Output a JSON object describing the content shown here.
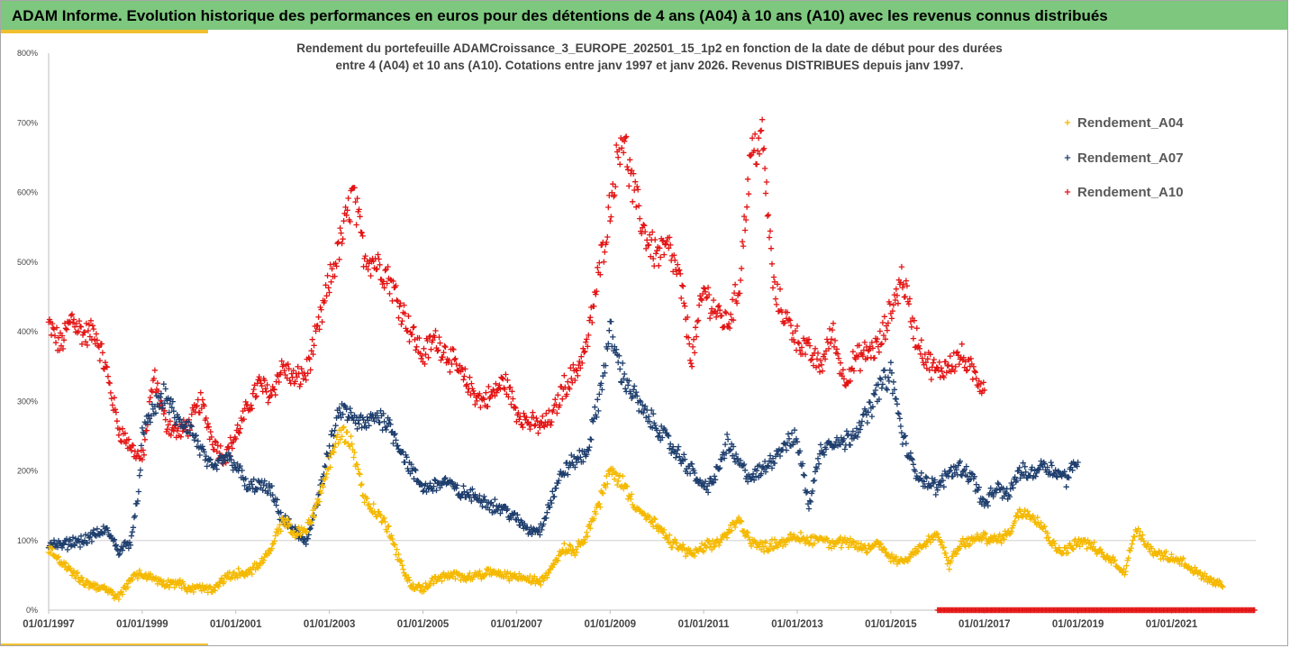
{
  "header": {
    "title": "ADAM Informe. Evolution historique des performances en euros pour des détentions de 4 ans (A04) à 10 ans (A10) avec les revenus connus distribués"
  },
  "chart_data": {
    "type": "scatter",
    "subtitle_lines": [
      "Rendement du portefeuille ADAMCroissance_3_EUROPE_202501_15_1p2  en fonction de la date de début pour des durées",
      "entre 4 (A04) et 10 ans (A10). Cotations entre janv 1997 et janv 2026. Revenus DISTRIBUES depuis janv 1997."
    ],
    "y_tick_labels": [
      "0%",
      "100%",
      "200%",
      "300%",
      "400%",
      "500%",
      "600%",
      "700%",
      "800%"
    ],
    "x_tick_labels": [
      "01/01/1997",
      "01/01/1999",
      "01/01/2001",
      "01/01/2003",
      "01/01/2005",
      "01/01/2007",
      "01/01/2009",
      "01/01/2011",
      "01/01/2013",
      "01/01/2015",
      "01/01/2017",
      "01/01/2019",
      "01/01/2021"
    ],
    "x_tick_years": [
      1997,
      1999,
      2001,
      2003,
      2005,
      2007,
      2009,
      2011,
      2013,
      2015,
      2017,
      2019,
      2021
    ],
    "xlim": [
      1997.0,
      2022.8
    ],
    "ylim": [
      0,
      800
    ],
    "marker": "plus",
    "grid": "horizontal at 100%",
    "legend_position": "right",
    "series": [
      {
        "name": "Rendement_A04",
        "color": "#f5b900",
        "points": [
          [
            1997.0,
            90
          ],
          [
            1997.25,
            70
          ],
          [
            1997.5,
            55
          ],
          [
            1997.75,
            40
          ],
          [
            1998.0,
            35
          ],
          [
            1998.25,
            28
          ],
          [
            1998.5,
            18
          ],
          [
            1998.75,
            45
          ],
          [
            1999.0,
            52
          ],
          [
            1999.25,
            45
          ],
          [
            1999.5,
            38
          ],
          [
            1999.75,
            40
          ],
          [
            2000.0,
            30
          ],
          [
            2000.25,
            32
          ],
          [
            2000.5,
            28
          ],
          [
            2000.75,
            45
          ],
          [
            2001.0,
            52
          ],
          [
            2001.25,
            55
          ],
          [
            2001.5,
            65
          ],
          [
            2001.75,
            85
          ],
          [
            2002.0,
            130
          ],
          [
            2002.25,
            110
          ],
          [
            2002.5,
            115
          ],
          [
            2002.75,
            155
          ],
          [
            2003.0,
            210
          ],
          [
            2003.25,
            260
          ],
          [
            2003.5,
            235
          ],
          [
            2003.75,
            160
          ],
          [
            2004.0,
            140
          ],
          [
            2004.25,
            120
          ],
          [
            2004.5,
            70
          ],
          [
            2004.75,
            35
          ],
          [
            2005.0,
            30
          ],
          [
            2005.25,
            45
          ],
          [
            2005.5,
            48
          ],
          [
            2005.75,
            50
          ],
          [
            2006.0,
            48
          ],
          [
            2006.25,
            52
          ],
          [
            2006.5,
            55
          ],
          [
            2006.75,
            50
          ],
          [
            2007.0,
            48
          ],
          [
            2007.25,
            45
          ],
          [
            2007.5,
            40
          ],
          [
            2007.75,
            60
          ],
          [
            2008.0,
            90
          ],
          [
            2008.25,
            85
          ],
          [
            2008.5,
            110
          ],
          [
            2008.75,
            150
          ],
          [
            2009.0,
            200
          ],
          [
            2009.25,
            185
          ],
          [
            2009.5,
            155
          ],
          [
            2009.75,
            135
          ],
          [
            2010.0,
            120
          ],
          [
            2010.25,
            100
          ],
          [
            2010.5,
            90
          ],
          [
            2010.75,
            80
          ],
          [
            2011.0,
            90
          ],
          [
            2011.25,
            95
          ],
          [
            2011.5,
            110
          ],
          [
            2011.75,
            130
          ],
          [
            2012.0,
            100
          ],
          [
            2012.25,
            90
          ],
          [
            2012.5,
            95
          ],
          [
            2012.75,
            100
          ],
          [
            2013.0,
            105
          ],
          [
            2013.25,
            100
          ],
          [
            2013.5,
            105
          ],
          [
            2013.75,
            95
          ],
          [
            2014.0,
            98
          ],
          [
            2014.25,
            92
          ],
          [
            2014.5,
            88
          ],
          [
            2014.75,
            95
          ],
          [
            2015.0,
            75
          ],
          [
            2015.25,
            70
          ],
          [
            2015.5,
            85
          ],
          [
            2015.75,
            95
          ],
          [
            2016.0,
            110
          ],
          [
            2016.25,
            65
          ],
          [
            2016.5,
            95
          ],
          [
            2016.75,
            100
          ],
          [
            2017.0,
            105
          ],
          [
            2017.25,
            100
          ],
          [
            2017.5,
            110
          ],
          [
            2017.75,
            140
          ],
          [
            2018.0,
            140
          ],
          [
            2018.25,
            120
          ],
          [
            2018.5,
            90
          ],
          [
            2018.75,
            85
          ],
          [
            2019.0,
            100
          ],
          [
            2019.25,
            95
          ],
          [
            2019.5,
            80
          ],
          [
            2019.75,
            70
          ],
          [
            2020.0,
            55
          ],
          [
            2020.25,
            120
          ],
          [
            2020.5,
            90
          ],
          [
            2020.75,
            80
          ],
          [
            2021.0,
            75
          ],
          [
            2021.25,
            70
          ],
          [
            2021.5,
            55
          ],
          [
            2021.75,
            45
          ],
          [
            2022.0,
            38
          ],
          [
            2022.1,
            35
          ]
        ]
      },
      {
        "name": "Rendement_A07",
        "color": "#1f3f6e",
        "points": [
          [
            1997.0,
            95
          ],
          [
            1997.25,
            92
          ],
          [
            1997.5,
            98
          ],
          [
            1997.75,
            100
          ],
          [
            1998.0,
            108
          ],
          [
            1998.25,
            115
          ],
          [
            1998.5,
            85
          ],
          [
            1998.75,
            100
          ],
          [
            1998.9,
            155
          ],
          [
            1999.0,
            250
          ],
          [
            1999.25,
            290
          ],
          [
            1999.5,
            310
          ],
          [
            1999.75,
            270
          ],
          [
            2000.0,
            265
          ],
          [
            2000.25,
            230
          ],
          [
            2000.5,
            200
          ],
          [
            2000.75,
            220
          ],
          [
            2001.0,
            210
          ],
          [
            2001.25,
            175
          ],
          [
            2001.5,
            180
          ],
          [
            2001.75,
            170
          ],
          [
            2002.0,
            130
          ],
          [
            2002.25,
            115
          ],
          [
            2002.5,
            95
          ],
          [
            2002.75,
            160
          ],
          [
            2003.0,
            230
          ],
          [
            2003.25,
            290
          ],
          [
            2003.5,
            275
          ],
          [
            2003.75,
            265
          ],
          [
            2004.0,
            280
          ],
          [
            2004.25,
            270
          ],
          [
            2004.5,
            235
          ],
          [
            2004.75,
            200
          ],
          [
            2005.0,
            175
          ],
          [
            2005.25,
            180
          ],
          [
            2005.5,
            185
          ],
          [
            2005.75,
            170
          ],
          [
            2006.0,
            165
          ],
          [
            2006.25,
            160
          ],
          [
            2006.5,
            150
          ],
          [
            2006.75,
            145
          ],
          [
            2007.0,
            130
          ],
          [
            2007.25,
            115
          ],
          [
            2007.5,
            115
          ],
          [
            2007.75,
            160
          ],
          [
            2008.0,
            200
          ],
          [
            2008.25,
            215
          ],
          [
            2008.5,
            225
          ],
          [
            2008.75,
            300
          ],
          [
            2009.0,
            400
          ],
          [
            2009.25,
            340
          ],
          [
            2009.5,
            310
          ],
          [
            2009.75,
            280
          ],
          [
            2010.0,
            265
          ],
          [
            2010.25,
            240
          ],
          [
            2010.5,
            220
          ],
          [
            2010.75,
            200
          ],
          [
            2011.0,
            175
          ],
          [
            2011.25,
            190
          ],
          [
            2011.5,
            240
          ],
          [
            2011.75,
            210
          ],
          [
            2012.0,
            190
          ],
          [
            2012.25,
            200
          ],
          [
            2012.5,
            220
          ],
          [
            2012.75,
            240
          ],
          [
            2013.0,
            245
          ],
          [
            2013.25,
            150
          ],
          [
            2013.5,
            230
          ],
          [
            2013.75,
            245
          ],
          [
            2014.0,
            240
          ],
          [
            2014.25,
            260
          ],
          [
            2014.5,
            280
          ],
          [
            2014.75,
            320
          ],
          [
            2015.0,
            340
          ],
          [
            2015.25,
            250
          ],
          [
            2015.5,
            200
          ],
          [
            2015.75,
            185
          ],
          [
            2016.0,
            175
          ],
          [
            2016.25,
            200
          ],
          [
            2016.5,
            205
          ],
          [
            2016.75,
            190
          ],
          [
            2017.0,
            150
          ],
          [
            2017.25,
            175
          ],
          [
            2017.5,
            165
          ],
          [
            2017.75,
            200
          ],
          [
            2018.0,
            195
          ],
          [
            2018.25,
            210
          ],
          [
            2018.5,
            200
          ],
          [
            2018.75,
            190
          ],
          [
            2019.0,
            215
          ]
        ]
      },
      {
        "name": "Rendement_A10",
        "color": "#e31414",
        "points": [
          [
            1997.0,
            410
          ],
          [
            1997.25,
            380
          ],
          [
            1997.5,
            420
          ],
          [
            1997.75,
            395
          ],
          [
            1998.0,
            400
          ],
          [
            1998.25,
            340
          ],
          [
            1998.5,
            260
          ],
          [
            1998.75,
            235
          ],
          [
            1999.0,
            215
          ],
          [
            1999.25,
            335
          ],
          [
            1999.5,
            270
          ],
          [
            1999.75,
            255
          ],
          [
            2000.0,
            265
          ],
          [
            2000.25,
            300
          ],
          [
            2000.5,
            245
          ],
          [
            2000.75,
            220
          ],
          [
            2001.0,
            250
          ],
          [
            2001.25,
            290
          ],
          [
            2001.5,
            325
          ],
          [
            2001.75,
            310
          ],
          [
            2002.0,
            350
          ],
          [
            2002.25,
            330
          ],
          [
            2002.5,
            340
          ],
          [
            2002.75,
            400
          ],
          [
            2003.0,
            470
          ],
          [
            2003.25,
            530
          ],
          [
            2003.5,
            600
          ],
          [
            2003.75,
            510
          ],
          [
            2004.0,
            500
          ],
          [
            2004.25,
            480
          ],
          [
            2004.5,
            440
          ],
          [
            2004.75,
            400
          ],
          [
            2005.0,
            365
          ],
          [
            2005.25,
            390
          ],
          [
            2005.5,
            370
          ],
          [
            2005.75,
            345
          ],
          [
            2006.0,
            320
          ],
          [
            2006.25,
            300
          ],
          [
            2006.5,
            310
          ],
          [
            2006.75,
            330
          ],
          [
            2007.0,
            285
          ],
          [
            2007.25,
            270
          ],
          [
            2007.5,
            265
          ],
          [
            2007.75,
            275
          ],
          [
            2008.0,
            320
          ],
          [
            2008.25,
            340
          ],
          [
            2008.5,
            380
          ],
          [
            2008.75,
            480
          ],
          [
            2009.0,
            580
          ],
          [
            2009.25,
            690
          ],
          [
            2009.5,
            600
          ],
          [
            2009.75,
            540
          ],
          [
            2010.0,
            510
          ],
          [
            2010.25,
            520
          ],
          [
            2010.5,
            470
          ],
          [
            2010.75,
            360
          ],
          [
            2011.0,
            460
          ],
          [
            2011.25,
            430
          ],
          [
            2011.5,
            410
          ],
          [
            2011.75,
            460
          ],
          [
            2012.0,
            650
          ],
          [
            2012.25,
            680
          ],
          [
            2012.5,
            460
          ],
          [
            2012.75,
            420
          ],
          [
            2013.0,
            390
          ],
          [
            2013.25,
            370
          ],
          [
            2013.5,
            350
          ],
          [
            2013.75,
            400
          ],
          [
            2014.0,
            330
          ],
          [
            2014.25,
            360
          ],
          [
            2014.5,
            370
          ],
          [
            2014.75,
            380
          ],
          [
            2015.0,
            430
          ],
          [
            2015.25,
            480
          ],
          [
            2015.5,
            400
          ],
          [
            2015.75,
            360
          ],
          [
            2016.0,
            340
          ],
          [
            2016.25,
            355
          ],
          [
            2016.5,
            365
          ],
          [
            2016.75,
            340
          ],
          [
            2017.0,
            320
          ]
        ]
      }
    ],
    "zero_band": {
      "series": "Rendement_A10",
      "x_range": [
        2016.0,
        2022.8
      ],
      "y": 0
    }
  }
}
